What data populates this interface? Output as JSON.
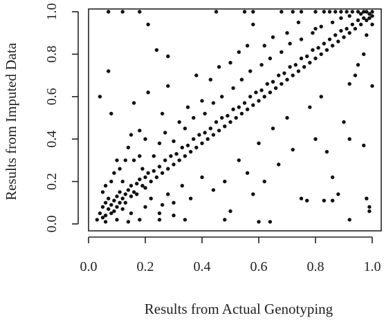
{
  "chart_data": {
    "type": "scatter",
    "title": "",
    "xlabel": "Results from Actual Genotyping",
    "ylabel": "Results from Imputed Data",
    "xlim": [
      0.0,
      1.0
    ],
    "ylim": [
      0.0,
      1.0
    ],
    "xticks": [
      "0.0",
      "0.2",
      "0.4",
      "0.6",
      "0.8",
      "1.0"
    ],
    "yticks": [
      "0.0",
      "0.2",
      "0.4",
      "0.6",
      "0.8",
      "1.0"
    ],
    "grid": false,
    "legend": "none",
    "point_color": "#111111",
    "description_of_distribution": "dense cluster along the diagonal y = x with scattered off-diagonal outliers",
    "series": [
      {
        "points": [
          [
            0.03,
            0.02
          ],
          [
            0.04,
            0.05
          ],
          [
            0.05,
            0.03
          ],
          [
            0.05,
            0.08
          ],
          [
            0.06,
            0.1
          ],
          [
            0.06,
            0.04
          ],
          [
            0.07,
            0.07
          ],
          [
            0.07,
            0.12
          ],
          [
            0.08,
            0.05
          ],
          [
            0.08,
            0.09
          ],
          [
            0.09,
            0.11
          ],
          [
            0.09,
            0.06
          ],
          [
            0.1,
            0.08
          ],
          [
            0.1,
            0.13
          ],
          [
            0.11,
            0.1
          ],
          [
            0.11,
            0.15
          ],
          [
            0.12,
            0.12
          ],
          [
            0.12,
            0.07
          ],
          [
            0.13,
            0.14
          ],
          [
            0.13,
            0.1
          ],
          [
            0.14,
            0.16
          ],
          [
            0.15,
            0.13
          ],
          [
            0.15,
            0.18
          ],
          [
            0.16,
            0.15
          ],
          [
            0.17,
            0.19
          ],
          [
            0.17,
            0.14
          ],
          [
            0.18,
            0.21
          ],
          [
            0.19,
            0.18
          ],
          [
            0.2,
            0.22
          ],
          [
            0.2,
            0.17
          ],
          [
            0.21,
            0.24
          ],
          [
            0.22,
            0.2
          ],
          [
            0.23,
            0.25
          ],
          [
            0.24,
            0.22
          ],
          [
            0.25,
            0.27
          ],
          [
            0.26,
            0.24
          ],
          [
            0.27,
            0.3
          ],
          [
            0.28,
            0.26
          ],
          [
            0.29,
            0.32
          ],
          [
            0.3,
            0.28
          ],
          [
            0.31,
            0.33
          ],
          [
            0.32,
            0.3
          ],
          [
            0.33,
            0.36
          ],
          [
            0.34,
            0.32
          ],
          [
            0.35,
            0.37
          ],
          [
            0.36,
            0.34
          ],
          [
            0.37,
            0.4
          ],
          [
            0.38,
            0.36
          ],
          [
            0.39,
            0.42
          ],
          [
            0.4,
            0.38
          ],
          [
            0.41,
            0.43
          ],
          [
            0.42,
            0.4
          ],
          [
            0.43,
            0.45
          ],
          [
            0.44,
            0.42
          ],
          [
            0.45,
            0.48
          ],
          [
            0.46,
            0.44
          ],
          [
            0.47,
            0.5
          ],
          [
            0.48,
            0.46
          ],
          [
            0.49,
            0.51
          ],
          [
            0.5,
            0.48
          ],
          [
            0.51,
            0.54
          ],
          [
            0.52,
            0.5
          ],
          [
            0.53,
            0.55
          ],
          [
            0.54,
            0.52
          ],
          [
            0.55,
            0.57
          ],
          [
            0.56,
            0.54
          ],
          [
            0.57,
            0.6
          ],
          [
            0.58,
            0.56
          ],
          [
            0.59,
            0.62
          ],
          [
            0.6,
            0.58
          ],
          [
            0.61,
            0.63
          ],
          [
            0.62,
            0.6
          ],
          [
            0.63,
            0.66
          ],
          [
            0.64,
            0.62
          ],
          [
            0.65,
            0.67
          ],
          [
            0.66,
            0.64
          ],
          [
            0.67,
            0.7
          ],
          [
            0.68,
            0.66
          ],
          [
            0.69,
            0.71
          ],
          [
            0.7,
            0.68
          ],
          [
            0.71,
            0.74
          ],
          [
            0.72,
            0.7
          ],
          [
            0.73,
            0.75
          ],
          [
            0.74,
            0.72
          ],
          [
            0.75,
            0.78
          ],
          [
            0.76,
            0.74
          ],
          [
            0.77,
            0.79
          ],
          [
            0.78,
            0.76
          ],
          [
            0.79,
            0.82
          ],
          [
            0.8,
            0.78
          ],
          [
            0.81,
            0.83
          ],
          [
            0.82,
            0.8
          ],
          [
            0.83,
            0.85
          ],
          [
            0.84,
            0.82
          ],
          [
            0.85,
            0.87
          ],
          [
            0.86,
            0.84
          ],
          [
            0.87,
            0.89
          ],
          [
            0.88,
            0.86
          ],
          [
            0.89,
            0.91
          ],
          [
            0.9,
            0.88
          ],
          [
            0.91,
            0.92
          ],
          [
            0.92,
            0.9
          ],
          [
            0.93,
            0.94
          ],
          [
            0.94,
            0.92
          ],
          [
            0.95,
            0.96
          ],
          [
            0.96,
            0.94
          ],
          [
            0.97,
            0.97
          ],
          [
            0.98,
            0.96
          ],
          [
            0.99,
            0.99
          ],
          [
            1.0,
            0.98
          ],
          [
            0.98,
            1.0
          ],
          [
            0.96,
            0.99
          ],
          [
            0.97,
            1.0
          ],
          [
            0.99,
            0.97
          ],
          [
            1.0,
            1.0
          ],
          [
            0.95,
            1.0
          ],
          [
            0.93,
            1.0
          ],
          [
            0.91,
            1.0
          ],
          [
            0.89,
            1.0
          ],
          [
            0.87,
            1.0
          ],
          [
            0.85,
            1.0
          ],
          [
            0.83,
            1.0
          ],
          [
            0.8,
            1.0
          ],
          [
            0.75,
            1.0
          ],
          [
            0.72,
            1.0
          ],
          [
            0.68,
            1.0
          ],
          [
            0.58,
            1.0
          ],
          [
            0.55,
            1.0
          ],
          [
            0.45,
            1.0
          ],
          [
            0.18,
            1.0
          ],
          [
            0.12,
            1.0
          ],
          [
            0.07,
            1.0
          ],
          [
            0.04,
            0.6
          ],
          [
            0.07,
            0.72
          ],
          [
            0.08,
            0.52
          ],
          [
            0.12,
            0.2
          ],
          [
            0.13,
            0.3
          ],
          [
            0.15,
            0.42
          ],
          [
            0.16,
            0.57
          ],
          [
            0.18,
            0.32
          ],
          [
            0.2,
            0.4
          ],
          [
            0.21,
            0.62
          ],
          [
            0.21,
            0.94
          ],
          [
            0.24,
            0.82
          ],
          [
            0.26,
            0.52
          ],
          [
            0.28,
            0.65
          ],
          [
            0.28,
            0.79
          ],
          [
            0.32,
            0.48
          ],
          [
            0.35,
            0.55
          ],
          [
            0.38,
            0.7
          ],
          [
            0.4,
            0.58
          ],
          [
            0.43,
            0.68
          ],
          [
            0.46,
            0.74
          ],
          [
            0.5,
            0.76
          ],
          [
            0.53,
            0.81
          ],
          [
            0.56,
            0.84
          ],
          [
            0.58,
            0.94
          ],
          [
            0.62,
            0.84
          ],
          [
            0.65,
            0.88
          ],
          [
            0.7,
            0.9
          ],
          [
            0.74,
            0.95
          ],
          [
            0.8,
            0.92
          ],
          [
            0.2,
            0.08
          ],
          [
            0.22,
            0.12
          ],
          [
            0.25,
            0.05
          ],
          [
            0.28,
            0.14
          ],
          [
            0.3,
            0.1
          ],
          [
            0.33,
            0.18
          ],
          [
            0.36,
            0.12
          ],
          [
            0.4,
            0.22
          ],
          [
            0.44,
            0.16
          ],
          [
            0.48,
            0.2
          ],
          [
            0.5,
            0.06
          ],
          [
            0.53,
            0.3
          ],
          [
            0.56,
            0.24
          ],
          [
            0.58,
            0.14
          ],
          [
            0.6,
            0.38
          ],
          [
            0.62,
            0.2
          ],
          [
            0.65,
            0.45
          ],
          [
            0.67,
            0.28
          ],
          [
            0.7,
            0.5
          ],
          [
            0.72,
            0.35
          ],
          [
            0.75,
            0.12
          ],
          [
            0.78,
            0.55
          ],
          [
            0.8,
            0.4
          ],
          [
            0.82,
            0.6
          ],
          [
            0.84,
            0.34
          ],
          [
            0.86,
            0.22
          ],
          [
            0.88,
            0.14
          ],
          [
            0.9,
            0.48
          ],
          [
            0.92,
            0.66
          ],
          [
            0.94,
            0.7
          ],
          [
            0.95,
            0.75
          ],
          [
            0.97,
            0.8
          ],
          [
            0.6,
            0.01
          ],
          [
            0.64,
            0.01
          ],
          [
            0.48,
            0.02
          ],
          [
            0.34,
            0.02
          ],
          [
            0.92,
            0.02
          ],
          [
            0.99,
            0.06
          ],
          [
            0.99,
            0.08
          ],
          [
            0.98,
            0.12
          ],
          [
            0.83,
            0.11
          ],
          [
            0.86,
            0.11
          ],
          [
            0.77,
            0.11
          ],
          [
            0.97,
            0.37
          ],
          [
            0.92,
            0.4
          ],
          [
            1.0,
            0.65
          ],
          [
            0.98,
            0.89
          ],
          [
            1.0,
            0.94
          ],
          [
            0.15,
            0.05
          ],
          [
            0.18,
            0.02
          ],
          [
            0.1,
            0.02
          ],
          [
            0.06,
            0.01
          ],
          [
            0.14,
            0.01
          ],
          [
            0.25,
            0.02
          ],
          [
            0.3,
            0.04
          ],
          [
            0.26,
            0.09
          ],
          [
            0.09,
            0.24
          ],
          [
            0.1,
            0.3
          ],
          [
            0.06,
            0.18
          ],
          [
            0.05,
            0.15
          ],
          [
            0.08,
            0.2
          ],
          [
            0.11,
            0.26
          ],
          [
            0.14,
            0.36
          ],
          [
            0.16,
            0.3
          ],
          [
            0.18,
            0.44
          ],
          [
            0.19,
            0.26
          ],
          [
            0.23,
            0.32
          ],
          [
            0.25,
            0.38
          ],
          [
            0.27,
            0.43
          ],
          [
            0.3,
            0.39
          ],
          [
            0.34,
            0.45
          ],
          [
            0.37,
            0.5
          ],
          [
            0.41,
            0.52
          ],
          [
            0.44,
            0.57
          ],
          [
            0.47,
            0.6
          ],
          [
            0.51,
            0.64
          ],
          [
            0.54,
            0.68
          ],
          [
            0.57,
            0.72
          ],
          [
            0.61,
            0.75
          ],
          [
            0.64,
            0.78
          ],
          [
            0.68,
            0.81
          ],
          [
            0.71,
            0.85
          ],
          [
            0.75,
            0.87
          ],
          [
            0.79,
            0.9
          ],
          [
            0.82,
            0.93
          ],
          [
            0.86,
            0.95
          ],
          [
            0.89,
            0.97
          ],
          [
            0.92,
            0.98
          ]
        ]
      }
    ]
  }
}
